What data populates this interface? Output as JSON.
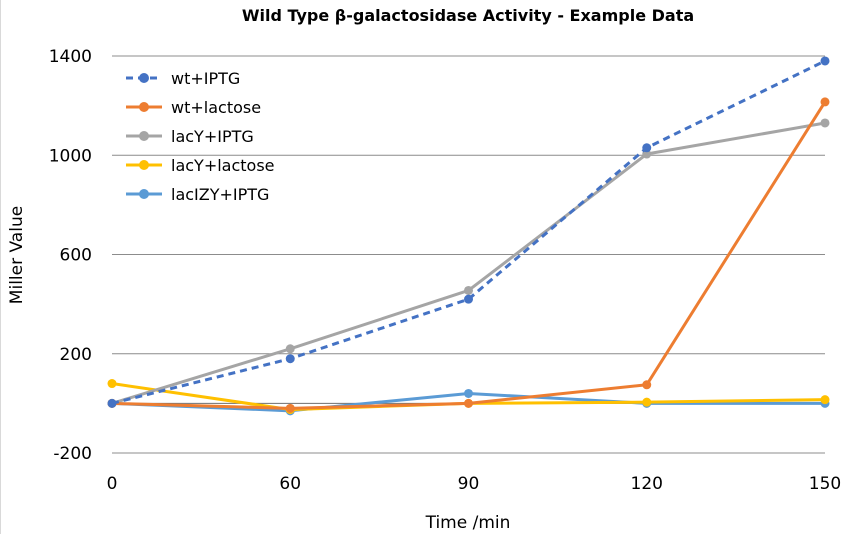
{
  "chart_data": {
    "type": "line",
    "title": "Wild Type β-galactosidase Activity - Example Data",
    "xlabel": "Time /min",
    "ylabel": "Miller Value",
    "x": [
      0,
      60,
      90,
      120,
      150
    ],
    "x_tick_labels": [
      "0",
      "60",
      "90",
      "120",
      "150"
    ],
    "ylim": [
      -200,
      1400
    ],
    "y_ticks": [
      -200,
      200,
      600,
      1000,
      1400
    ],
    "y_tick_labels": [
      "-200",
      "200",
      "600",
      "1000",
      "1400"
    ],
    "grid": true,
    "legend_position": "top-left",
    "series": [
      {
        "name": "wt+IPTG",
        "color": "#4472c4",
        "dashed": true,
        "values": [
          0,
          180,
          420,
          1030,
          1380
        ]
      },
      {
        "name": "wt+lactose",
        "color": "#ed7d31",
        "dashed": false,
        "values": [
          0,
          -20,
          0,
          75,
          1215
        ]
      },
      {
        "name": "lacY+IPTG",
        "color": "#a5a5a5",
        "dashed": false,
        "values": [
          0,
          220,
          455,
          1005,
          1130
        ]
      },
      {
        "name": "lacY+lactose",
        "color": "#ffc000",
        "dashed": false,
        "values": [
          80,
          -25,
          0,
          5,
          15
        ]
      },
      {
        "name": "lacIZY+IPTG",
        "color": "#5b9bd5",
        "dashed": false,
        "values": [
          0,
          -30,
          40,
          0,
          0
        ]
      }
    ]
  }
}
